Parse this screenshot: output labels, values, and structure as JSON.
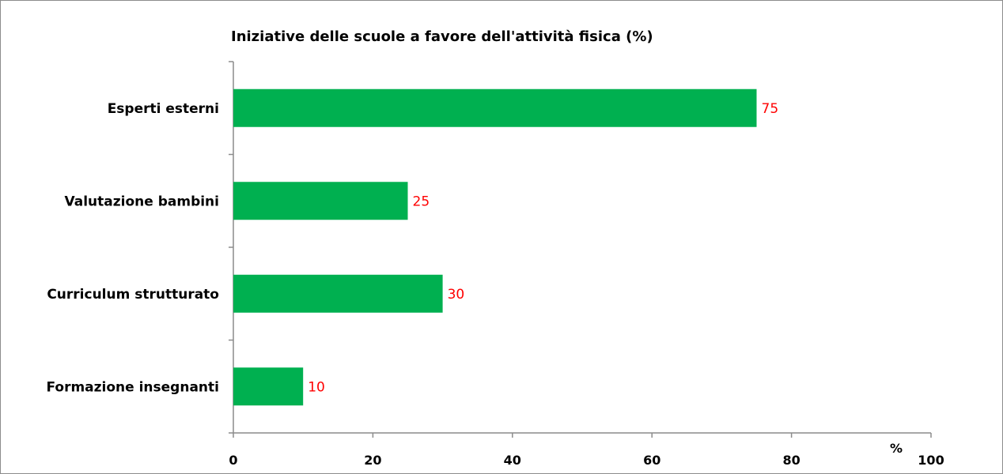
{
  "chart_data": {
    "type": "bar",
    "orientation": "horizontal",
    "title": "Iniziative delle scuole a favore dell'attività fisica (%)",
    "categories": [
      "Esperti esterni",
      "Valutazione bambini",
      "Curriculum strutturato",
      "Formazione insegnanti"
    ],
    "values": [
      75,
      25,
      30,
      10
    ],
    "xlabel": "%",
    "ylabel": "",
    "xlim": [
      0,
      100
    ],
    "xticks": [
      0,
      20,
      40,
      60,
      80,
      100
    ],
    "grid": false,
    "legend": "none",
    "bar_color": "#00b050",
    "data_label_color": "#ff0000",
    "frame_color": "#8c8c8c"
  }
}
